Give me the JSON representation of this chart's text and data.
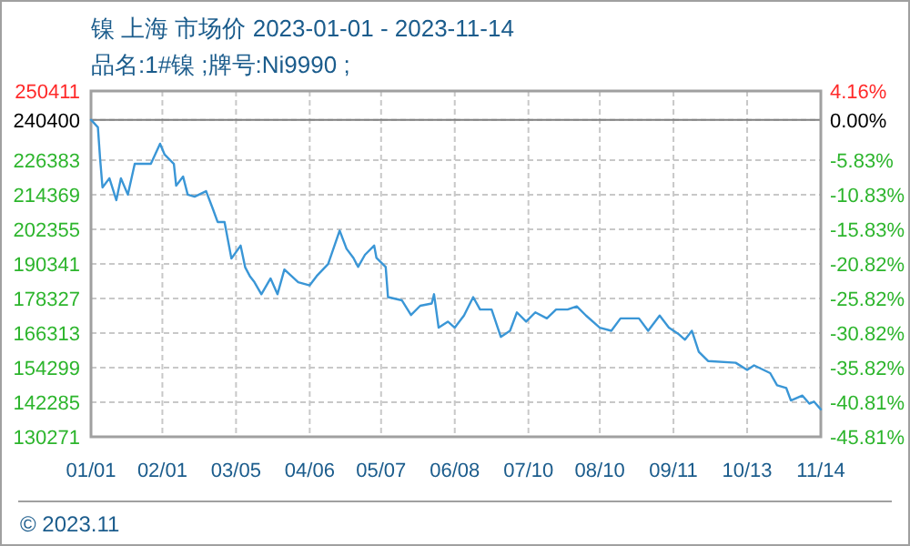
{
  "chart_data": {
    "type": "line",
    "title": "镍 上海 市场价 2023-01-01 - 2023-11-14",
    "subtitle": "品名:1#镍 ;牌号:Ni9990 ;",
    "x": [
      "2023-01-01",
      "2023-01-04",
      "2023-01-05",
      "2023-01-06",
      "2023-01-09",
      "2023-01-12",
      "2023-01-14",
      "2023-01-17",
      "2023-01-20",
      "2023-01-27",
      "2023-01-31",
      "2023-02-02",
      "2023-02-06",
      "2023-02-07",
      "2023-02-10",
      "2023-02-12",
      "2023-02-15",
      "2023-02-20",
      "2023-02-23",
      "2023-02-25",
      "2023-02-28",
      "2023-03-03",
      "2023-03-07",
      "2023-03-09",
      "2023-03-11",
      "2023-03-13",
      "2023-03-16",
      "2023-03-20",
      "2023-03-23",
      "2023-03-26",
      "2023-04-01",
      "2023-04-06",
      "2023-04-09",
      "2023-04-14",
      "2023-04-19",
      "2023-04-22",
      "2023-04-25",
      "2023-04-27",
      "2023-04-30",
      "2023-05-04",
      "2023-05-05",
      "2023-05-09",
      "2023-05-10",
      "2023-05-16",
      "2023-05-20",
      "2023-05-24",
      "2023-05-29",
      "2023-05-30",
      "2023-06-01",
      "2023-06-05",
      "2023-06-08",
      "2023-06-12",
      "2023-06-16",
      "2023-06-19",
      "2023-06-24",
      "2023-06-28",
      "2023-07-02",
      "2023-07-05",
      "2023-07-09",
      "2023-07-13",
      "2023-07-18",
      "2023-07-22",
      "2023-07-27",
      "2023-07-31",
      "2023-08-04",
      "2023-08-10",
      "2023-08-15",
      "2023-08-19",
      "2023-08-27",
      "2023-08-31",
      "2023-09-05",
      "2023-09-09",
      "2023-09-13",
      "2023-09-16",
      "2023-09-19",
      "2023-09-22",
      "2023-09-26",
      "2023-10-08",
      "2023-10-13",
      "2023-10-16",
      "2023-10-23",
      "2023-10-26",
      "2023-10-30",
      "2023-11-01",
      "2023-11-06",
      "2023-11-09",
      "2023-11-11",
      "2023-11-14"
    ],
    "series": [
      {
        "color": "#3a96d6",
        "values": [
          240400,
          237800,
          226400,
          216900,
          220100,
          212500,
          220100,
          214400,
          225100,
          225100,
          232100,
          228300,
          225100,
          217500,
          220700,
          214400,
          213700,
          215600,
          209300,
          204900,
          204900,
          192200,
          196700,
          189100,
          186100,
          184000,
          179800,
          185300,
          179800,
          188400,
          184000,
          182900,
          186100,
          190300,
          201900,
          195600,
          192400,
          189300,
          193500,
          196700,
          192400,
          189300,
          178800,
          177700,
          172600,
          175800,
          176600,
          179800,
          168200,
          170300,
          168200,
          172400,
          178800,
          174500,
          174500,
          165000,
          167100,
          173500,
          170300,
          173500,
          171400,
          174500,
          174500,
          175600,
          172400,
          168200,
          167100,
          171400,
          171400,
          167100,
          172400,
          168200,
          166100,
          164000,
          167100,
          159800,
          156600,
          156000,
          153500,
          155100,
          152400,
          148200,
          147200,
          142900,
          144600,
          141800,
          142500,
          139800
        ]
      }
    ],
    "xlim": [
      "2023-01-01",
      "2023-11-14"
    ],
    "xticks": [
      {
        "value": "2023-01-01",
        "label": "01/01"
      },
      {
        "value": "2023-02-01",
        "label": "02/01"
      },
      {
        "value": "2023-03-05",
        "label": "03/05"
      },
      {
        "value": "2023-04-06",
        "label": "04/06"
      },
      {
        "value": "2023-05-07",
        "label": "05/07"
      },
      {
        "value": "2023-06-08",
        "label": "06/08"
      },
      {
        "value": "2023-07-10",
        "label": "07/10"
      },
      {
        "value": "2023-08-10",
        "label": "08/10"
      },
      {
        "value": "2023-09-11",
        "label": "09/11"
      },
      {
        "value": "2023-10-13",
        "label": "10/13"
      },
      {
        "value": "2023-11-14",
        "label": "11/14"
      }
    ],
    "ylim": [
      130271,
      250411
    ],
    "yticks": [
      130271,
      142285,
      154299,
      166313,
      178327,
      190341,
      202355,
      214369,
      226383,
      240400,
      250411
    ],
    "y2lim": [
      -45.81,
      4.16
    ],
    "y2ticks": [
      {
        "value": -45.81,
        "label": "-45.81%"
      },
      {
        "value": -40.81,
        "label": "-40.81%"
      },
      {
        "value": -35.82,
        "label": "-35.82%"
      },
      {
        "value": -30.82,
        "label": "-30.82%"
      },
      {
        "value": -25.82,
        "label": "-25.82%"
      },
      {
        "value": -20.82,
        "label": "-20.82%"
      },
      {
        "value": -15.83,
        "label": "-15.83%"
      },
      {
        "value": -10.83,
        "label": "-10.83%"
      },
      {
        "value": -5.83,
        "label": "-5.83%"
      },
      {
        "value": 0,
        "label": "0.00%"
      },
      {
        "value": 4.16,
        "label": "4.16%"
      }
    ],
    "grid": true,
    "ref_lines": [
      {
        "axis": "y",
        "value": 240400,
        "color": "#808080"
      }
    ],
    "annotations": [
      "© 2023.11"
    ]
  }
}
